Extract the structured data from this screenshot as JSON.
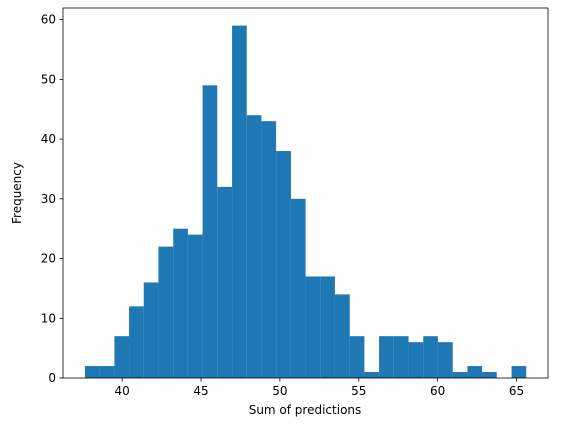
{
  "chart_data": {
    "type": "histogram",
    "xlabel": "Sum of predictions",
    "ylabel": "Frequency",
    "bins": [
      37.64,
      38.57,
      39.51,
      40.44,
      41.37,
      42.3,
      43.24,
      44.17,
      45.1,
      46.03,
      46.97,
      47.9,
      48.83,
      49.76,
      50.7,
      51.63,
      52.56,
      53.49,
      54.43,
      55.36,
      56.29,
      57.22,
      58.16,
      59.09,
      60.02,
      60.96,
      61.89,
      62.82,
      63.75,
      64.69,
      65.62
    ],
    "values": [
      2,
      2,
      7,
      12,
      16,
      22,
      25,
      24,
      49,
      32,
      59,
      44,
      43,
      38,
      30,
      17,
      17,
      14,
      7,
      1,
      7,
      7,
      6,
      7,
      6,
      1,
      2,
      1,
      0,
      2
    ],
    "color": "#1f77b4",
    "xlim": [
      36.25,
      67.0
    ],
    "ylim": [
      0,
      61.95
    ],
    "xticks": [
      40,
      45,
      50,
      55,
      60,
      65
    ],
    "yticks": [
      0,
      10,
      20,
      30,
      40,
      50,
      60
    ]
  }
}
